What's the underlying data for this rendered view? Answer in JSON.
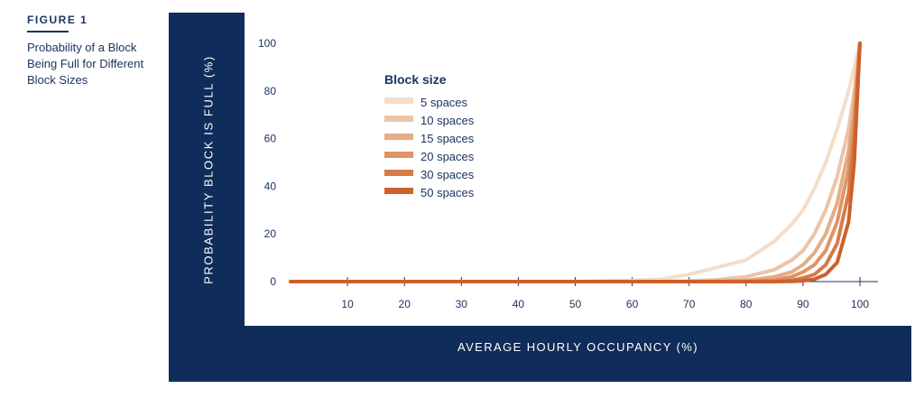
{
  "figure": {
    "label": "FIGURE 1",
    "title": "Probability of a Block Being Full for Different Block Sizes"
  },
  "chart_data": {
    "type": "line",
    "xlabel": "AVERAGE HOURLY OCCUPANCY (%)",
    "ylabel": "PROBABILITY BLOCK IS FULL (%)",
    "xlim": [
      0,
      100
    ],
    "ylim": [
      0,
      100
    ],
    "x_ticks": [
      10,
      20,
      30,
      40,
      50,
      60,
      70,
      80,
      90,
      100
    ],
    "y_ticks": [
      0,
      20,
      40,
      60,
      80,
      100
    ],
    "grid": false,
    "legend": {
      "title": "Block size",
      "position": "top-left"
    },
    "x": [
      0,
      10,
      20,
      30,
      40,
      50,
      60,
      65,
      70,
      75,
      80,
      85,
      88,
      90,
      92,
      94,
      96,
      98,
      99,
      100
    ],
    "series": [
      {
        "name": "5 spaces",
        "color": "#f4ddc8",
        "values": [
          0,
          0,
          0,
          0,
          0,
          0,
          0.5,
          1,
          3,
          6,
          9,
          17,
          24,
          30,
          39,
          50,
          64,
          80,
          90,
          100
        ]
      },
      {
        "name": "10 spaces",
        "color": "#ecc4a6",
        "values": [
          0,
          0,
          0,
          0,
          0,
          0,
          0,
          0,
          0.2,
          0.8,
          2,
          5,
          9,
          13,
          20,
          30,
          44,
          64,
          80,
          100
        ]
      },
      {
        "name": "15 spaces",
        "color": "#e5ac85",
        "values": [
          0,
          0,
          0,
          0,
          0,
          0,
          0,
          0,
          0,
          0.1,
          0.5,
          2,
          4,
          7,
          12,
          20,
          33,
          55,
          74,
          100
        ]
      },
      {
        "name": "20 spaces",
        "color": "#de9466",
        "values": [
          0,
          0,
          0,
          0,
          0,
          0,
          0,
          0,
          0,
          0,
          0.1,
          0.7,
          2,
          4,
          7,
          13,
          25,
          47,
          68,
          100
        ]
      },
      {
        "name": "30 spaces",
        "color": "#d77a48",
        "values": [
          0,
          0,
          0,
          0,
          0,
          0,
          0,
          0,
          0,
          0,
          0,
          0.1,
          0.5,
          1.5,
          3,
          7,
          16,
          37,
          60,
          100
        ]
      },
      {
        "name": "50 spaces",
        "color": "#cc612b",
        "values": [
          0,
          0,
          0,
          0,
          0,
          0,
          0,
          0,
          0,
          0,
          0,
          0,
          0.1,
          0.3,
          1,
          3,
          8,
          25,
          50,
          100
        ]
      }
    ]
  }
}
